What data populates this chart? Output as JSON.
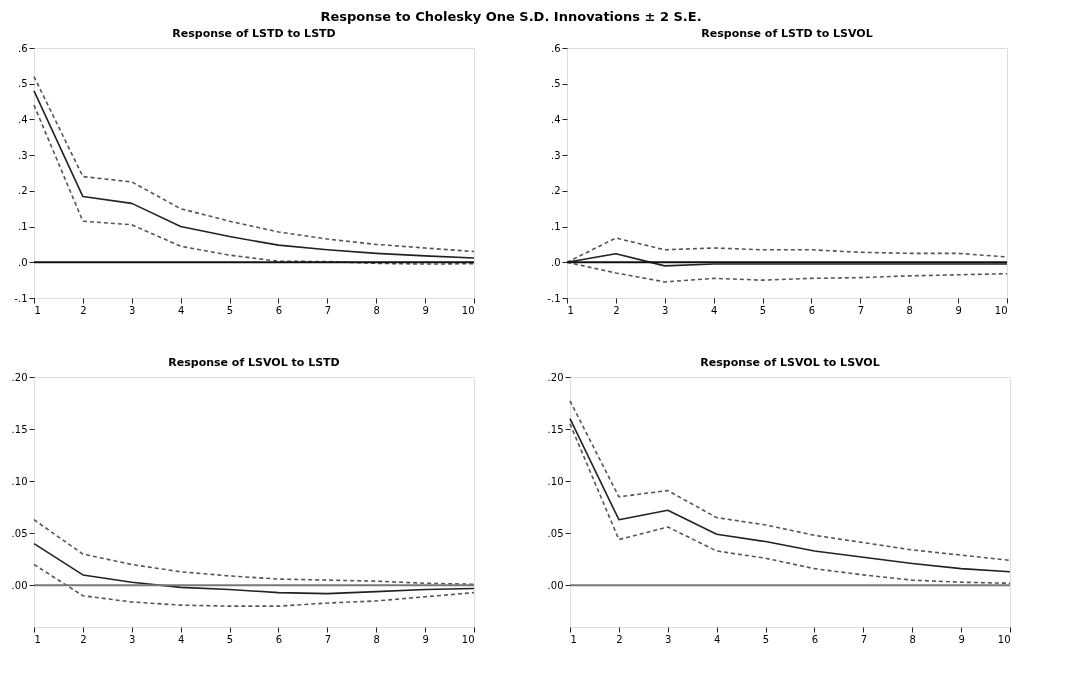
{
  "chart_data": [
    {
      "type": "line",
      "title": "Response of LSTD to LSTD",
      "x": [
        1,
        2,
        3,
        4,
        5,
        6,
        7,
        8,
        9,
        10
      ],
      "xlim": [
        1,
        10
      ],
      "xticks": [
        1,
        2,
        3,
        4,
        5,
        6,
        7,
        8,
        9,
        10
      ],
      "ylim": [
        -0.1,
        0.6
      ],
      "yticks": [
        {
          "value": -0.1,
          "label": "-.1"
        },
        {
          "value": 0,
          "label": ".0"
        },
        {
          "value": 0.1,
          "label": ".1"
        },
        {
          "value": 0.2,
          "label": ".2"
        },
        {
          "value": 0.3,
          "label": ".3"
        },
        {
          "value": 0.4,
          "label": ".4"
        },
        {
          "value": 0.5,
          "label": ".5"
        },
        {
          "value": 0.6,
          "label": ".6"
        }
      ],
      "grid": false,
      "series": [
        {
          "color": "#222222",
          "line_style": "solid",
          "values": [
            0.48,
            0.184,
            0.165,
            0.1,
            0.072,
            0.048,
            0.035,
            0.025,
            0.018,
            0.012
          ]
        },
        {
          "color": "#555555",
          "line_style": "dashed",
          "values": [
            0.52,
            0.24,
            0.225,
            0.15,
            0.115,
            0.085,
            0.065,
            0.05,
            0.04,
            0.03
          ]
        },
        {
          "color": "#555555",
          "line_style": "dashed",
          "values": [
            0.44,
            0.115,
            0.105,
            0.045,
            0.02,
            0.003,
            0.002,
            -0.003,
            -0.005,
            -0.004
          ]
        }
      ],
      "ref_lines": [
        {
          "axis": "y",
          "value": 0,
          "color": "#111111"
        }
      ]
    },
    {
      "type": "line",
      "title": "Response of LSTD to LSVOL",
      "x": [
        1,
        2,
        3,
        4,
        5,
        6,
        7,
        8,
        9,
        10
      ],
      "xlim": [
        1,
        10
      ],
      "xticks": [
        1,
        2,
        3,
        4,
        5,
        6,
        7,
        8,
        9,
        10
      ],
      "ylim": [
        -0.1,
        0.6
      ],
      "yticks": [
        {
          "value": -0.1,
          "label": "-.1"
        },
        {
          "value": 0,
          "label": ".0"
        },
        {
          "value": 0.1,
          "label": ".1"
        },
        {
          "value": 0.2,
          "label": ".2"
        },
        {
          "value": 0.3,
          "label": ".3"
        },
        {
          "value": 0.4,
          "label": ".4"
        },
        {
          "value": 0.5,
          "label": ".5"
        },
        {
          "value": 0.6,
          "label": ".6"
        }
      ],
      "grid": false,
      "series": [
        {
          "color": "#222222",
          "line_style": "solid",
          "values": [
            0.0,
            0.024,
            -0.01,
            -0.005,
            -0.005,
            -0.005,
            -0.005,
            -0.005,
            -0.005,
            -0.005
          ]
        },
        {
          "color": "#555555",
          "line_style": "dashed",
          "values": [
            0.0,
            0.068,
            0.035,
            0.04,
            0.035,
            0.035,
            0.028,
            0.025,
            0.025,
            0.015
          ]
        },
        {
          "color": "#555555",
          "line_style": "dashed",
          "values": [
            0.0,
            -0.03,
            -0.055,
            -0.045,
            -0.05,
            -0.045,
            -0.043,
            -0.038,
            -0.035,
            -0.032
          ]
        }
      ],
      "ref_lines": [
        {
          "axis": "y",
          "value": 0,
          "color": "#111111"
        }
      ]
    },
    {
      "type": "line",
      "title": "Response of LSVOL to LSTD",
      "x": [
        1,
        2,
        3,
        4,
        5,
        6,
        7,
        8,
        9,
        10
      ],
      "xlim": [
        1,
        10
      ],
      "xticks": [
        1,
        2,
        3,
        4,
        5,
        6,
        7,
        8,
        9,
        10
      ],
      "ylim": [
        -0.04,
        0.2
      ],
      "yticks": [
        {
          "value": 0,
          "label": ".00"
        },
        {
          "value": 0.05,
          "label": ".05"
        },
        {
          "value": 0.1,
          "label": ".10"
        },
        {
          "value": 0.15,
          "label": ".15"
        },
        {
          "value": 0.2,
          "label": ".20"
        }
      ],
      "grid": false,
      "series": [
        {
          "color": "#222222",
          "line_style": "solid",
          "values": [
            0.04,
            0.01,
            0.003,
            -0.002,
            -0.004,
            -0.007,
            -0.008,
            -0.006,
            -0.004,
            -0.003
          ]
        },
        {
          "color": "#555555",
          "line_style": "dashed",
          "values": [
            0.063,
            0.03,
            0.02,
            0.013,
            0.009,
            0.006,
            0.005,
            0.004,
            0.002,
            0.001
          ]
        },
        {
          "color": "#555555",
          "line_style": "dashed",
          "values": [
            0.02,
            -0.01,
            -0.016,
            -0.019,
            -0.02,
            -0.02,
            -0.017,
            -0.015,
            -0.011,
            -0.007
          ]
        }
      ],
      "ref_lines": [
        {
          "axis": "y",
          "value": 0,
          "color": "#777777"
        }
      ]
    },
    {
      "type": "line",
      "title": "Response of LSVOL to LSVOL",
      "x": [
        1,
        2,
        3,
        4,
        5,
        6,
        7,
        8,
        9,
        10
      ],
      "xlim": [
        1,
        10
      ],
      "xticks": [
        1,
        2,
        3,
        4,
        5,
        6,
        7,
        8,
        9,
        10
      ],
      "ylim": [
        -0.04,
        0.2
      ],
      "yticks": [
        {
          "value": 0,
          "label": ".00"
        },
        {
          "value": 0.05,
          "label": ".05"
        },
        {
          "value": 0.1,
          "label": ".10"
        },
        {
          "value": 0.15,
          "label": ".15"
        },
        {
          "value": 0.2,
          "label": ".20"
        }
      ],
      "grid": false,
      "series": [
        {
          "color": "#222222",
          "line_style": "solid",
          "values": [
            0.16,
            0.063,
            0.072,
            0.049,
            0.042,
            0.033,
            0.027,
            0.021,
            0.016,
            0.013
          ]
        },
        {
          "color": "#555555",
          "line_style": "dashed",
          "values": [
            0.177,
            0.085,
            0.091,
            0.065,
            0.058,
            0.048,
            0.041,
            0.034,
            0.029,
            0.024
          ]
        },
        {
          "color": "#555555",
          "line_style": "dashed",
          "values": [
            0.155,
            0.044,
            0.056,
            0.033,
            0.026,
            0.016,
            0.01,
            0.005,
            0.003,
            0.002
          ]
        }
      ],
      "ref_lines": [
        {
          "axis": "y",
          "value": 0,
          "color": "#777777"
        }
      ]
    },
    {
      "type": "other",
      "title": "Response to Cholesky One S.D. Innovations ± 2 S.E."
    }
  ]
}
